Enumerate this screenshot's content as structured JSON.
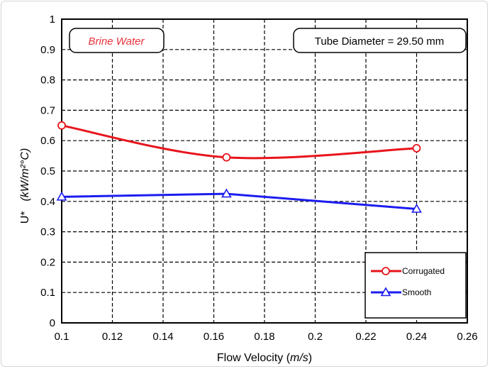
{
  "chart_data": {
    "type": "line",
    "xlabel_prefix": "Flow Velocity (",
    "xlabel_unit": "m/s",
    "xlabel_suffix": ")",
    "ylabel_prefix": "U*",
    "ylabel_unit": "(kW/m²°C)",
    "xlim": [
      0.1,
      0.26
    ],
    "ylim": [
      0,
      1
    ],
    "xticks": [
      "0.1",
      "0.12",
      "0.14",
      "0.16",
      "0.18",
      "0.2",
      "0.22",
      "0.24",
      "0.26"
    ],
    "yticks": [
      "0",
      "0.1",
      "0.2",
      "0.3",
      "0.4",
      "0.5",
      "0.6",
      "0.7",
      "0.8",
      "0.9",
      "1"
    ],
    "grid": true,
    "legend_position": "bottom-right",
    "series": [
      {
        "name": "Corrugated",
        "color": "#e8141c",
        "marker": "circle",
        "x": [
          0.1,
          0.165,
          0.24
        ],
        "y": [
          0.65,
          0.545,
          0.575
        ]
      },
      {
        "name": "Smooth",
        "color": "#1c1cf0",
        "marker": "triangle",
        "x": [
          0.1,
          0.165,
          0.24
        ],
        "y": [
          0.415,
          0.425,
          0.375
        ]
      }
    ],
    "annotations": {
      "fluid": "Brine Water",
      "fluid_color": "#e8323c",
      "diameter": "Tube Diameter = 29.50 mm"
    }
  }
}
